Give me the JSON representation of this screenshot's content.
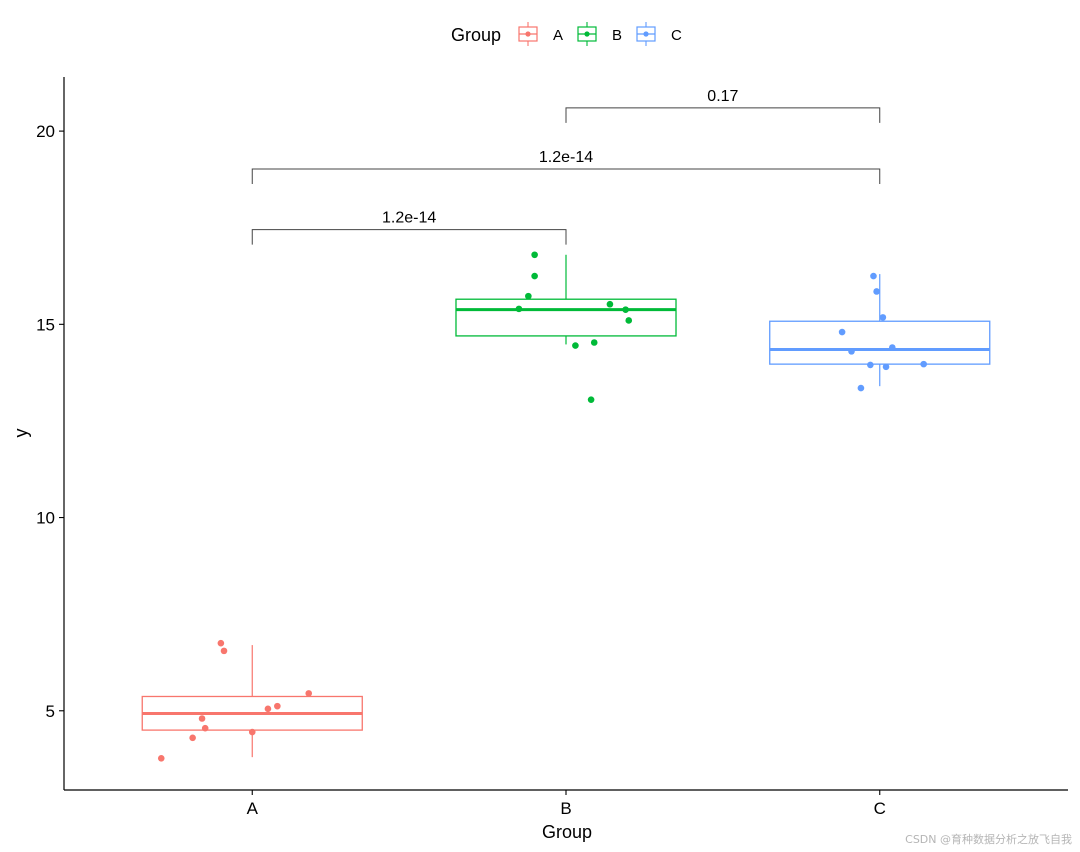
{
  "chart_data": {
    "type": "boxplot",
    "xlabel": "Group",
    "ylabel": "y",
    "ylim": [
      2.95,
      21.4
    ],
    "yticks": [
      5,
      10,
      15,
      20
    ],
    "categories": [
      "A",
      "B",
      "C"
    ],
    "legend": {
      "title": "Group",
      "position": "top",
      "entries": [
        "A",
        "B",
        "C"
      ]
    },
    "colors": {
      "A": "#F8766D",
      "B": "#00BA38",
      "C": "#619CFF"
    },
    "groups": [
      {
        "name": "A",
        "box": {
          "min": 3.8,
          "q1": 4.5,
          "median": 4.93,
          "q3": 5.37,
          "max": 6.7
        },
        "points": [
          {
            "x": -0.29,
            "y": 3.77
          },
          {
            "x": -0.19,
            "y": 4.3
          },
          {
            "x": -0.15,
            "y": 4.55
          },
          {
            "x": -0.16,
            "y": 4.8
          },
          {
            "x": 0.0,
            "y": 4.45
          },
          {
            "x": 0.05,
            "y": 5.05
          },
          {
            "x": 0.08,
            "y": 5.12
          },
          {
            "x": 0.18,
            "y": 5.45
          },
          {
            "x": -0.09,
            "y": 6.55
          },
          {
            "x": -0.1,
            "y": 6.75
          }
        ]
      },
      {
        "name": "B",
        "box": {
          "min": 14.48,
          "q1": 14.7,
          "median": 15.38,
          "q3": 15.65,
          "max": 16.8
        },
        "points": [
          {
            "x": -0.1,
            "y": 16.8
          },
          {
            "x": -0.1,
            "y": 16.25
          },
          {
            "x": -0.12,
            "y": 15.73
          },
          {
            "x": -0.15,
            "y": 15.4
          },
          {
            "x": 0.14,
            "y": 15.52
          },
          {
            "x": 0.19,
            "y": 15.38
          },
          {
            "x": 0.2,
            "y": 15.1
          },
          {
            "x": 0.09,
            "y": 14.53
          },
          {
            "x": 0.03,
            "y": 14.45
          },
          {
            "x": 0.08,
            "y": 13.05
          }
        ]
      },
      {
        "name": "C",
        "box": {
          "min": 13.4,
          "q1": 13.97,
          "median": 14.35,
          "q3": 15.08,
          "max": 16.3
        },
        "points": [
          {
            "x": -0.02,
            "y": 16.25
          },
          {
            "x": -0.01,
            "y": 15.85
          },
          {
            "x": 0.01,
            "y": 15.18
          },
          {
            "x": -0.12,
            "y": 14.8
          },
          {
            "x": -0.09,
            "y": 14.3
          },
          {
            "x": 0.04,
            "y": 14.4
          },
          {
            "x": -0.03,
            "y": 13.95
          },
          {
            "x": 0.02,
            "y": 13.9
          },
          {
            "x": 0.14,
            "y": 13.97
          },
          {
            "x": -0.06,
            "y": 13.35
          }
        ]
      }
    ],
    "comparisons": [
      {
        "from": "A",
        "to": "B",
        "label": "1.2e-14",
        "y": 17.45
      },
      {
        "from": "A",
        "to": "C",
        "label": "1.2e-14",
        "y": 19.02
      },
      {
        "from": "B",
        "to": "C",
        "label": "0.17",
        "y": 20.6
      }
    ]
  },
  "watermark": "CSDN @育种数据分析之放飞自我"
}
